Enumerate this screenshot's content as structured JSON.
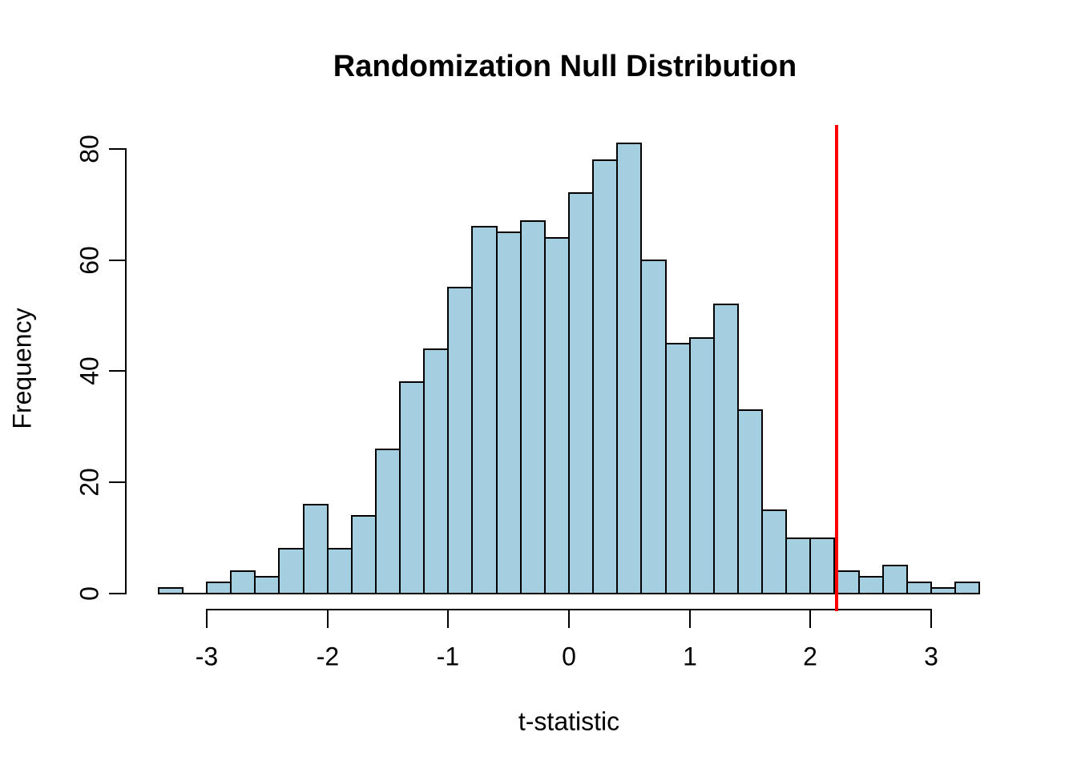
{
  "chart_data": {
    "type": "bar",
    "chart_kind": "histogram",
    "title": "Randomization Null Distribution",
    "xlabel": "t-statistic",
    "ylabel": "Frequency",
    "bin_start": -3.4,
    "bin_width": 0.2,
    "counts": [
      1,
      0,
      2,
      4,
      3,
      8,
      16,
      8,
      14,
      26,
      38,
      44,
      55,
      66,
      65,
      67,
      64,
      72,
      78,
      81,
      60,
      45,
      46,
      52,
      33,
      15,
      10,
      10,
      4,
      3,
      5,
      2,
      1,
      2
    ],
    "total_samples": 1000,
    "x_ticks": [
      -3,
      -2,
      -1,
      0,
      1,
      2,
      3
    ],
    "y_ticks": [
      0,
      20,
      40,
      60,
      80
    ],
    "xlim": [
      -3.4,
      3.4
    ],
    "ylim": [
      0,
      81
    ],
    "grid": false,
    "legend_position": "none",
    "bar_fill_color": "#A3CFE0",
    "bar_stroke_color": "#000000",
    "observed_line": {
      "x": 2.22,
      "color": "#FF0000"
    }
  }
}
